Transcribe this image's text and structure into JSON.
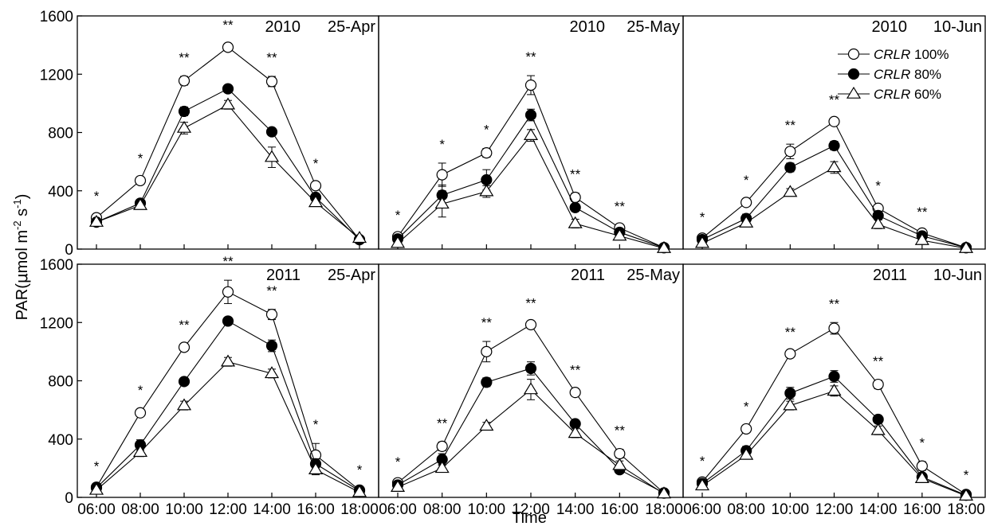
{
  "chart_data": {
    "type": "line",
    "ylabel": "PAR(μmol m-2 s-1)",
    "ylabel_parts": {
      "main": "PAR(",
      "mu": "μ",
      "unit1": "mol m",
      "exp1": "-2",
      "unit2": " s",
      "exp2": "-1",
      "close": ")"
    },
    "xlabel": "Time",
    "x": [
      "06:00",
      "08:00",
      "10:00",
      "12:00",
      "14:00",
      "16:00",
      "18:00"
    ],
    "yticks": [
      "0",
      "400",
      "800",
      "1200",
      "1600"
    ],
    "ylim": [
      0,
      1600
    ],
    "grid": false,
    "legend_placement": "top-right of last column top panel",
    "legend": [
      {
        "prefix": "CRLR",
        "suffix": " 100%",
        "marker": "open-circle"
      },
      {
        "prefix": "CRLR",
        "suffix": " 80%",
        "marker": "filled-circle"
      },
      {
        "prefix": "CRLR",
        "suffix": " 60%",
        "marker": "open-triangle"
      }
    ],
    "panels": [
      {
        "year": "2010",
        "date": "25-Apr",
        "series": [
          {
            "values": [
              215,
              470,
              1155,
              1385,
              1150,
              435,
              65
            ],
            "errors": [
              20,
              25,
              30,
              25,
              35,
              25,
              10
            ]
          },
          {
            "values": [
              185,
              315,
              945,
              1100,
              805,
              355,
              65
            ],
            "errors": [
              15,
              20,
              30,
              20,
              20,
              20,
              10
            ]
          },
          {
            "values": [
              185,
              300,
              830,
              990,
              630,
              320,
              75
            ],
            "errors": [
              15,
              20,
              40,
              30,
              70,
              25,
              10
            ]
          }
        ],
        "sig": [
          "*",
          "*",
          "**",
          "**",
          "**",
          "*",
          ""
        ]
      },
      {
        "year": "2010",
        "date": "25-May",
        "series": [
          {
            "values": [
              85,
              510,
              660,
              1125,
              355,
              145,
              10
            ],
            "errors": [
              20,
              80,
              30,
              65,
              30,
              20,
              5
            ]
          },
          {
            "values": [
              70,
              370,
              475,
              920,
              285,
              115,
              10
            ],
            "errors": [
              15,
              70,
              70,
              40,
              25,
              20,
              5
            ]
          },
          {
            "values": [
              40,
              310,
              395,
              780,
              175,
              90,
              5
            ],
            "errors": [
              10,
              90,
              40,
              40,
              30,
              20,
              5
            ]
          }
        ],
        "sig": [
          "*",
          "*",
          "*",
          "**",
          "**",
          "**",
          ""
        ]
      },
      {
        "year": "2010",
        "date": "10-Jun",
        "series": [
          {
            "values": [
              75,
              320,
              670,
              875,
              280,
              110,
              10
            ],
            "errors": [
              15,
              25,
              50,
              20,
              25,
              15,
              5
            ]
          },
          {
            "values": [
              65,
              210,
              560,
              710,
              230,
              90,
              10
            ],
            "errors": [
              15,
              30,
              30,
              30,
              30,
              15,
              5
            ]
          },
          {
            "values": [
              40,
              180,
              390,
              560,
              170,
              60,
              5
            ],
            "errors": [
              10,
              20,
              25,
              40,
              30,
              15,
              5
            ]
          }
        ],
        "sig": [
          "*",
          "*",
          "**",
          "**",
          "*",
          "**",
          ""
        ]
      },
      {
        "year": "2011",
        "date": "25-Apr",
        "series": [
          {
            "values": [
              70,
              580,
              1030,
              1410,
              1255,
              290,
              50
            ],
            "errors": [
              15,
              25,
              25,
              80,
              35,
              80,
              10
            ]
          },
          {
            "values": [
              65,
              360,
              795,
              1210,
              1040,
              230,
              45
            ],
            "errors": [
              15,
              35,
              20,
              20,
              40,
              35,
              10
            ]
          },
          {
            "values": [
              50,
              310,
              630,
              930,
              850,
              190,
              35
            ],
            "errors": [
              10,
              30,
              30,
              30,
              30,
              35,
              10
            ]
          }
        ],
        "sig": [
          "*",
          "*",
          "**",
          "**",
          "**",
          "*",
          "*"
        ]
      },
      {
        "year": "2011",
        "date": "25-May",
        "series": [
          {
            "values": [
              100,
              350,
              1000,
              1185,
              720,
              300,
              30
            ],
            "errors": [
              15,
              30,
              70,
              20,
              25,
              30,
              5
            ]
          },
          {
            "values": [
              85,
              260,
              790,
              885,
              505,
              190,
              30
            ],
            "errors": [
              15,
              40,
              30,
              45,
              25,
              20,
              5
            ]
          },
          {
            "values": [
              70,
              200,
              490,
              740,
              440,
              220,
              25
            ],
            "errors": [
              10,
              25,
              25,
              70,
              30,
              30,
              5
            ]
          }
        ],
        "sig": [
          "*",
          "**",
          "**",
          "**",
          "**",
          "**",
          ""
        ]
      },
      {
        "year": "2011",
        "date": "10-Jun",
        "series": [
          {
            "values": [
              105,
              470,
              985,
              1160,
              775,
              215,
              20
            ],
            "errors": [
              15,
              25,
              20,
              40,
              30,
              30,
              5
            ]
          },
          {
            "values": [
              95,
              320,
              715,
              830,
              535,
              140,
              15
            ],
            "errors": [
              15,
              30,
              40,
              40,
              25,
              20,
              5
            ]
          },
          {
            "values": [
              80,
              290,
              630,
              730,
              460,
              130,
              10
            ],
            "errors": [
              15,
              25,
              30,
              35,
              30,
              20,
              5
            ]
          }
        ],
        "sig": [
          "*",
          "*",
          "**",
          "**",
          "**",
          "*",
          "*"
        ]
      }
    ]
  }
}
